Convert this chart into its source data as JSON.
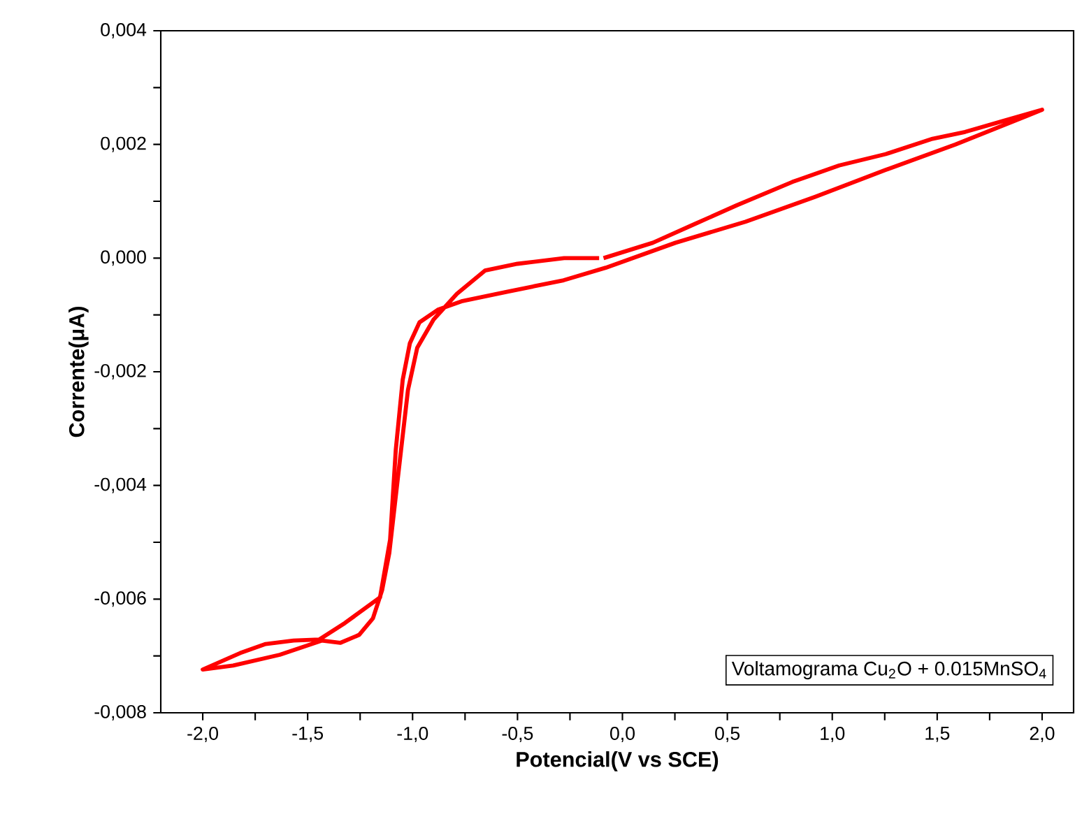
{
  "chart_data": {
    "type": "line",
    "xlabel": "Potencial(V vs SCE)",
    "ylabel": "Corrente(μA)",
    "annotations": [
      "Voltamograma Cu$_{2}$O + 0.015MnSO$_{4}$"
    ],
    "xlim": [
      -2.2,
      2.15
    ],
    "ylim": [
      -0.008,
      0.004
    ],
    "xticks": [
      {
        "value": -2.0,
        "label": "-2,0"
      },
      {
        "value": -1.75,
        "label": null
      },
      {
        "value": -1.5,
        "label": "-1,5"
      },
      {
        "value": -1.25,
        "label": null
      },
      {
        "value": -1.0,
        "label": "-1,0"
      },
      {
        "value": -0.75,
        "label": null
      },
      {
        "value": -0.5,
        "label": "-0,5"
      },
      {
        "value": -0.25,
        "label": null
      },
      {
        "value": 0.0,
        "label": "0,0"
      },
      {
        "value": 0.25,
        "label": null
      },
      {
        "value": 0.5,
        "label": "0,5"
      },
      {
        "value": 0.75,
        "label": null
      },
      {
        "value": 1.0,
        "label": "1,0"
      },
      {
        "value": 1.25,
        "label": null
      },
      {
        "value": 1.5,
        "label": "1,5"
      },
      {
        "value": 1.75,
        "label": null
      },
      {
        "value": 2.0,
        "label": "2,0"
      }
    ],
    "yticks": [
      {
        "value": -0.008,
        "label": "-0,008"
      },
      {
        "value": -0.007,
        "label": null
      },
      {
        "value": -0.006,
        "label": "-0,006"
      },
      {
        "value": -0.005,
        "label": null
      },
      {
        "value": -0.004,
        "label": "-0,004"
      },
      {
        "value": -0.003,
        "label": null
      },
      {
        "value": -0.002,
        "label": "-0,002"
      },
      {
        "value": -0.001,
        "label": null
      },
      {
        "value": 0.0,
        "label": "0,000"
      },
      {
        "value": 0.001,
        "label": null
      },
      {
        "value": 0.002,
        "label": "0,002"
      },
      {
        "value": 0.003,
        "label": null
      },
      {
        "value": 0.004,
        "label": "0,004"
      }
    ],
    "marker": "none",
    "line_style": "solid",
    "series": [
      {
        "color": "#ff0000",
        "x": [
          -0.09,
          0.145,
          0.345,
          0.545,
          0.81,
          1.033,
          1.255,
          1.478,
          1.633,
          1.811,
          2.0,
          1.92,
          1.587,
          1.253,
          0.92,
          0.587,
          0.253,
          -0.08,
          -0.28,
          -0.547,
          -0.767,
          -0.88,
          -0.967,
          -1.013,
          -1.047,
          -1.08,
          -1.107,
          -1.155,
          -1.322,
          -1.444,
          -1.567,
          -1.7,
          -1.822,
          -2.0,
          -1.855,
          -1.633,
          -1.433,
          -1.345,
          -1.255,
          -1.189,
          -1.145,
          -1.111,
          -1.055,
          -1.022,
          -0.978,
          -0.9,
          -0.789,
          -0.655,
          -0.5,
          -0.278,
          -0.111
        ],
        "values": [
          0.0,
          0.00027,
          0.0006,
          0.00093,
          0.00134,
          0.00163,
          0.00183,
          0.0021,
          0.00222,
          0.00241,
          0.00261,
          0.00249,
          0.002,
          0.00155,
          0.00108,
          0.00064,
          0.00027,
          -0.00017,
          -0.00039,
          -0.00059,
          -0.00076,
          -0.00091,
          -0.00113,
          -0.0015,
          -0.00214,
          -0.00337,
          -0.00495,
          -0.00597,
          -0.00642,
          -0.00671,
          -0.00673,
          -0.00679,
          -0.00695,
          -0.00724,
          -0.00717,
          -0.00698,
          -0.00673,
          -0.00677,
          -0.00663,
          -0.00634,
          -0.00584,
          -0.00519,
          -0.00338,
          -0.00232,
          -0.00158,
          -0.00108,
          -0.00063,
          -0.00022,
          -0.0001,
          0.0,
          0.0
        ]
      }
    ]
  }
}
